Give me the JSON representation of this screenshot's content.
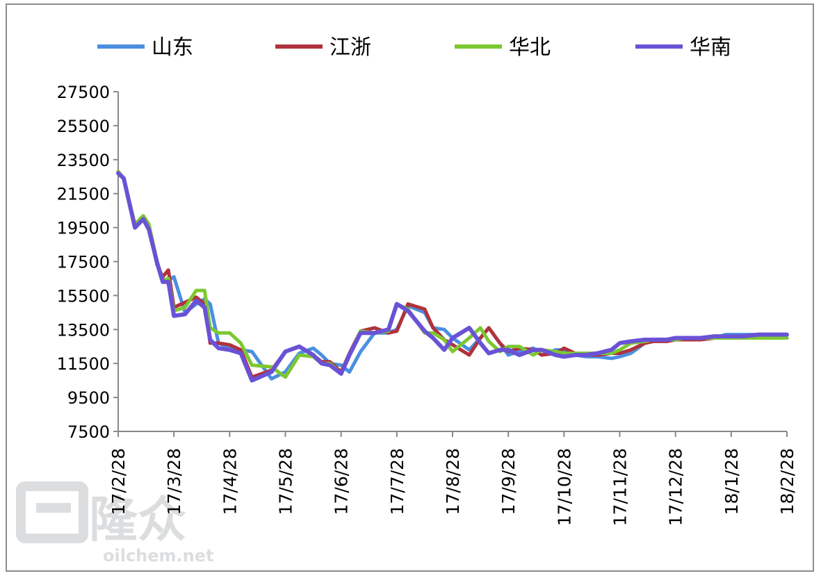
{
  "chart_data": {
    "type": "line",
    "title": "",
    "xlabel": "",
    "ylabel": "",
    "ylim": [
      7500,
      27500
    ],
    "yticks": [
      27500,
      25500,
      23500,
      21500,
      19500,
      17500,
      15500,
      13500,
      11500,
      9500,
      7500
    ],
    "xticks": [
      "17/2/28",
      "17/3/28",
      "17/4/28",
      "17/5/28",
      "17/6/28",
      "17/7/28",
      "17/8/28",
      "17/9/28",
      "17/10/28",
      "17/11/28",
      "17/12/28",
      "18/1/28",
      "18/2/28"
    ],
    "legend_position": "top",
    "grid": false,
    "x": [
      0,
      0.1,
      0.3,
      0.45,
      0.55,
      0.7,
      0.8,
      0.9,
      1,
      1.2,
      1.4,
      1.55,
      1.65,
      1.8,
      2,
      2.2,
      2.4,
      2.75,
      3,
      3.25,
      3.5,
      3.65,
      3.8,
      4,
      4.15,
      4.35,
      4.6,
      4.85,
      5,
      5.2,
      5.5,
      5.65,
      5.85,
      6,
      6.3,
      6.5,
      6.65,
      6.85,
      7,
      7.2,
      7.45,
      7.6,
      7.85,
      8,
      8.2,
      8.4,
      8.6,
      8.85,
      9,
      9.2,
      9.45,
      9.6,
      9.85,
      10,
      10.2,
      10.45,
      10.7,
      10.9,
      11.2,
      11.5,
      11.75,
      12
    ],
    "series": [
      {
        "name": "山东",
        "color": "#4a8fe0",
        "values": [
          22800,
          22400,
          19600,
          20000,
          19500,
          17300,
          16400,
          16400,
          16600,
          14500,
          15000,
          15300,
          15000,
          12700,
          12400,
          12300,
          12200,
          10600,
          11000,
          12100,
          12400,
          12000,
          11500,
          11400,
          11000,
          12200,
          13300,
          13300,
          13500,
          14900,
          14500,
          13600,
          13500,
          13000,
          12300,
          13000,
          13600,
          12700,
          12000,
          12200,
          12400,
          12000,
          12300,
          12300,
          12000,
          11900,
          11900,
          11800,
          11900,
          12100,
          12700,
          12800,
          12900,
          12900,
          12900,
          13000,
          13000,
          13200,
          13200,
          13200,
          13200,
          13200
        ]
      },
      {
        "name": "江浙",
        "color": "#b0323c",
        "values": [
          22800,
          22400,
          19600,
          20000,
          19500,
          17300,
          16600,
          17000,
          14800,
          15100,
          15400,
          15000,
          12700,
          12700,
          12600,
          12300,
          10700,
          11100,
          12200,
          12500,
          12000,
          11600,
          11600,
          11000,
          12100,
          13400,
          13600,
          13300,
          13400,
          15000,
          14700,
          13600,
          12900,
          12600,
          12000,
          13000,
          13600,
          12700,
          12200,
          12400,
          12300,
          12000,
          12100,
          12400,
          12100,
          12000,
          12000,
          12100,
          12100,
          12300,
          12700,
          12800,
          12800,
          12900,
          12900,
          12900,
          13000,
          13000,
          13000,
          13000,
          13000,
          13000
        ]
      },
      {
        "name": "华北",
        "color": "#7dc831",
        "values": [
          22800,
          22400,
          19700,
          20200,
          19700,
          17500,
          16400,
          16500,
          14600,
          14800,
          15800,
          15800,
          13600,
          13300,
          13300,
          12700,
          11400,
          11300,
          10700,
          12000,
          11900,
          11500,
          11500,
          10900,
          12000,
          13400,
          13300,
          13400,
          15000,
          14700,
          13300,
          13300,
          12900,
          12200,
          13000,
          13600,
          12800,
          12200,
          12500,
          12500,
          12000,
          12300,
          12200,
          12100,
          12100,
          12100,
          12100,
          12100,
          12300,
          12700,
          12800,
          12900,
          12900,
          12900,
          13000,
          13000,
          13000,
          13000,
          13000,
          13000,
          13000,
          13000
        ]
      },
      {
        "name": "华南",
        "color": "#6a52d6",
        "values": [
          22700,
          22400,
          19500,
          20000,
          19400,
          17400,
          16300,
          16300,
          14300,
          14400,
          15200,
          14800,
          12900,
          12400,
          12300,
          12100,
          10500,
          11000,
          12200,
          12500,
          12000,
          11500,
          11400,
          10900,
          12000,
          13300,
          13300,
          13500,
          15000,
          14600,
          13400,
          13000,
          12300,
          13000,
          13600,
          12700,
          12100,
          12300,
          12300,
          12000,
          12300,
          12300,
          12000,
          11900,
          12000,
          12000,
          12100,
          12300,
          12700,
          12800,
          12900,
          12900,
          12900,
          13000,
          13000,
          13000,
          13100,
          13100,
          13100,
          13200,
          13200,
          13200
        ]
      }
    ]
  },
  "watermark": {
    "text": "oilchem.net",
    "brand": "隆众"
  }
}
